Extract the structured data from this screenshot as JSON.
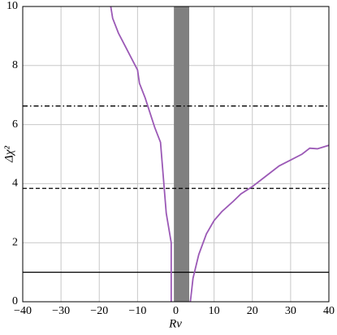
{
  "chart_data": {
    "type": "line",
    "x_label": "Rν",
    "y_label": "Δχ²",
    "xlim": [
      -40,
      40
    ],
    "ylim": [
      0,
      10
    ],
    "xticks": [
      {
        "value": -40,
        "label": "−40"
      },
      {
        "value": -30,
        "label": "−30"
      },
      {
        "value": -20,
        "label": "−20"
      },
      {
        "value": -10,
        "label": "−10"
      },
      0,
      10,
      20,
      30,
      40
    ],
    "yticks": [
      0,
      2,
      4,
      6,
      8,
      10
    ],
    "grid": true,
    "bands": [
      {
        "from": -0.5,
        "to": 3.5,
        "color": "#808080"
      }
    ],
    "hlines": [
      {
        "value": 1,
        "style": "solid"
      },
      {
        "value": 3.84,
        "style": "dashed"
      },
      {
        "value": 6.63,
        "style": "dashdot"
      }
    ],
    "series": [
      {
        "color": "#9b59b6",
        "x": [
          -17,
          -16.5,
          -15,
          -13,
          -11,
          -10,
          -9.5,
          -8,
          -6.5,
          -5.5,
          -4,
          -3.5,
          -2.5,
          -1.2,
          -1.2
        ],
        "y": [
          10,
          9.6,
          9.1,
          8.6,
          8.1,
          7.85,
          7.4,
          6.9,
          6.3,
          5.9,
          5.4,
          4.6,
          3.0,
          2.0,
          0
        ]
      },
      {
        "color": "#9b59b6",
        "x": [
          3.8,
          4.5,
          6,
          8,
          10,
          12,
          15,
          17,
          20,
          23,
          27,
          30,
          33,
          35,
          37,
          40
        ],
        "y": [
          0,
          0.8,
          1.6,
          2.3,
          2.75,
          3.05,
          3.4,
          3.65,
          3.9,
          4.2,
          4.6,
          4.8,
          5.0,
          5.2,
          5.18,
          5.3
        ]
      }
    ]
  }
}
